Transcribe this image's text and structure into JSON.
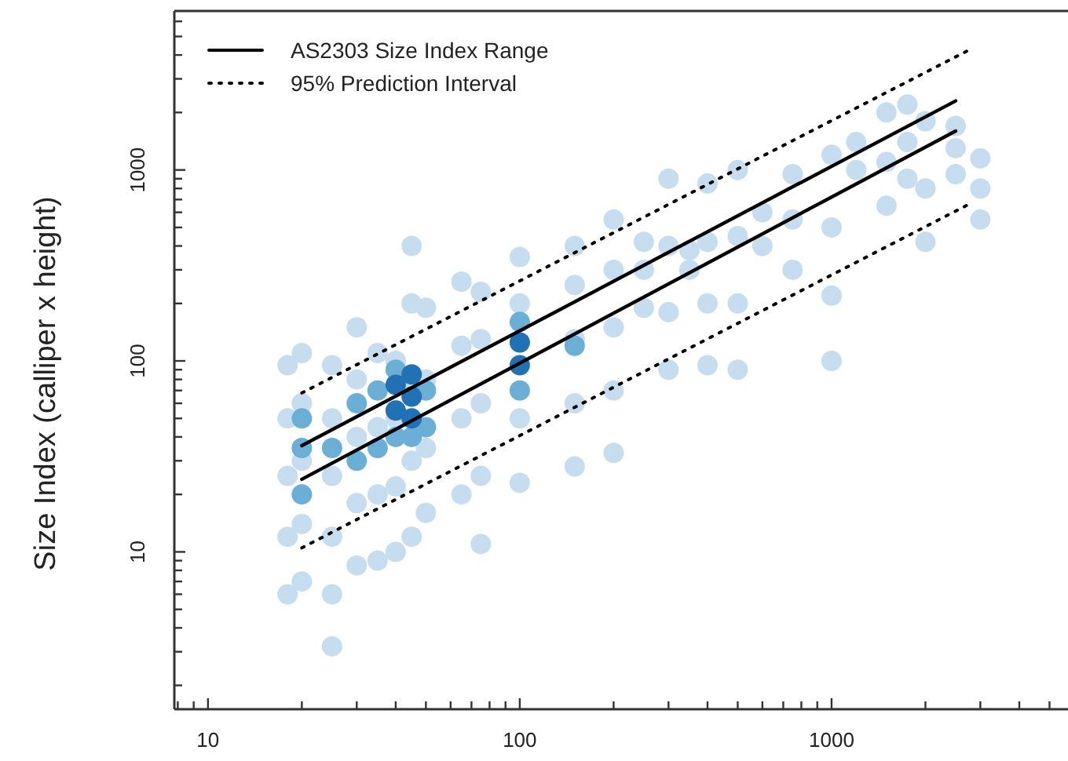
{
  "chart_data": {
    "type": "scatter",
    "ylabel": "Size Index (calliper x height)",
    "log": "xy",
    "grid": false,
    "legend": "top left",
    "marker": "circle",
    "xlim": [
      7.8,
      5600
    ],
    "ylim": [
      1.5,
      6800
    ],
    "xticks": [
      {
        "value": 8,
        "label": null
      },
      {
        "value": 9,
        "label": null
      },
      10,
      {
        "value": 20,
        "label": null
      },
      {
        "value": 30,
        "label": null
      },
      {
        "value": 40,
        "label": null
      },
      {
        "value": 50,
        "label": null
      },
      {
        "value": 60,
        "label": null
      },
      {
        "value": 70,
        "label": null
      },
      {
        "value": 80,
        "label": null
      },
      {
        "value": 90,
        "label": null
      },
      100,
      {
        "value": 200,
        "label": null
      },
      {
        "value": 300,
        "label": null
      },
      {
        "value": 400,
        "label": null
      },
      {
        "value": 500,
        "label": null
      },
      {
        "value": 600,
        "label": null
      },
      {
        "value": 700,
        "label": null
      },
      {
        "value": 800,
        "label": null
      },
      {
        "value": 900,
        "label": null
      },
      1000,
      {
        "value": 2000,
        "label": null
      },
      {
        "value": 3000,
        "label": null
      },
      {
        "value": 4000,
        "label": null
      },
      {
        "value": 5000,
        "label": null
      }
    ],
    "yticks": [
      {
        "value": 2,
        "label": null
      },
      {
        "value": 3,
        "label": null
      },
      {
        "value": 4,
        "label": null
      },
      {
        "value": 5,
        "label": null
      },
      {
        "value": 6,
        "label": null
      },
      {
        "value": 7,
        "label": null
      },
      {
        "value": 8,
        "label": null
      },
      {
        "value": 9,
        "label": null
      },
      10,
      {
        "value": 20,
        "label": null
      },
      {
        "value": 30,
        "label": null
      },
      {
        "value": 40,
        "label": null
      },
      {
        "value": 50,
        "label": null
      },
      {
        "value": 60,
        "label": null
      },
      {
        "value": 70,
        "label": null
      },
      {
        "value": 80,
        "label": null
      },
      {
        "value": 90,
        "label": null
      },
      100,
      {
        "value": 200,
        "label": null
      },
      {
        "value": 300,
        "label": null
      },
      {
        "value": 400,
        "label": null
      },
      {
        "value": 500,
        "label": null
      },
      {
        "value": 600,
        "label": null
      },
      {
        "value": 700,
        "label": null
      },
      {
        "value": 800,
        "label": null
      },
      {
        "value": 900,
        "label": null
      },
      1000,
      {
        "value": 2000,
        "label": null
      },
      {
        "value": 3000,
        "label": null
      },
      {
        "value": 4000,
        "label": null
      },
      {
        "value": 5000,
        "label": null
      },
      {
        "value": 6000,
        "label": null
      }
    ],
    "series": [
      {
        "color": "#c6dcef",
        "x": [
          18,
          18,
          18,
          18,
          18,
          20,
          20,
          20,
          20,
          20,
          25,
          25,
          25,
          25,
          25,
          25,
          30,
          30,
          30,
          30,
          30,
          35,
          35,
          35,
          35,
          40,
          40,
          40,
          40,
          45,
          45,
          45,
          45,
          45,
          50,
          50,
          50,
          50,
          65,
          65,
          65,
          65,
          75,
          75,
          75,
          75,
          75,
          100,
          100,
          100,
          100,
          150,
          150,
          150,
          150,
          150,
          200,
          200,
          200,
          200,
          200,
          250,
          250,
          250,
          300,
          300,
          300,
          300,
          350,
          350,
          400,
          400,
          400,
          400,
          500,
          500,
          500,
          500,
          600,
          600,
          750,
          750,
          750,
          1000,
          1000,
          1000,
          1000,
          1200,
          1200,
          1500,
          1500,
          1500,
          1750,
          1750,
          1750,
          2000,
          2000,
          2000,
          2500,
          2500,
          2500,
          3000,
          3000,
          3000
        ],
        "values": [
          6,
          12,
          25,
          50,
          95,
          7,
          14,
          30,
          60,
          110,
          3.2,
          6,
          12,
          25,
          50,
          95,
          8.5,
          18,
          40,
          80,
          150,
          9,
          20,
          45,
          110,
          10,
          22,
          50,
          100,
          12,
          30,
          80,
          200,
          400,
          16,
          35,
          80,
          190,
          20,
          50,
          120,
          260,
          11,
          25,
          60,
          130,
          230,
          23,
          50,
          200,
          350,
          28,
          60,
          130,
          250,
          400,
          33,
          70,
          150,
          300,
          550,
          190,
          300,
          420,
          90,
          180,
          400,
          900,
          300,
          380,
          95,
          200,
          420,
          850,
          90,
          200,
          450,
          1000,
          400,
          600,
          300,
          550,
          950,
          100,
          220,
          500,
          1200,
          1000,
          1400,
          650,
          1100,
          2000,
          900,
          1400,
          2200,
          420,
          800,
          1800,
          950,
          1300,
          1700,
          550,
          800,
          1150
        ]
      },
      {
        "color": "#6baed6",
        "x": [
          20,
          20,
          20,
          25,
          30,
          30,
          35,
          35,
          40,
          40,
          45,
          50,
          50,
          100,
          100,
          150
        ],
        "values": [
          20,
          35,
          50,
          35,
          30,
          60,
          35,
          70,
          40,
          90,
          40,
          45,
          70,
          70,
          160,
          120
        ]
      },
      {
        "color": "#2171b5",
        "x": [
          40,
          40,
          45,
          45,
          45,
          100,
          100
        ],
        "values": [
          55,
          75,
          50,
          65,
          85,
          95,
          125
        ]
      },
      {
        "type": "line",
        "name": "AS2303 Size Index Range",
        "color": "#000000",
        "line_style": "solid",
        "marker": "none",
        "x": [
          20,
          2500
        ],
        "values": [
          36,
          2300
        ]
      },
      {
        "type": "line",
        "color": "#000000",
        "line_style": "solid",
        "marker": "none",
        "x": [
          20,
          2500
        ],
        "values": [
          24,
          1600
        ]
      },
      {
        "type": "line",
        "name": "95% Prediction Interval",
        "color": "#000000",
        "line_style": "dotted",
        "marker": "none",
        "x": [
          20,
          2800
        ],
        "values": [
          68,
          4300
        ]
      },
      {
        "type": "line",
        "color": "#000000",
        "line_style": "dotted",
        "marker": "none",
        "x": [
          20,
          2800
        ],
        "values": [
          10.5,
          670
        ]
      }
    ]
  }
}
